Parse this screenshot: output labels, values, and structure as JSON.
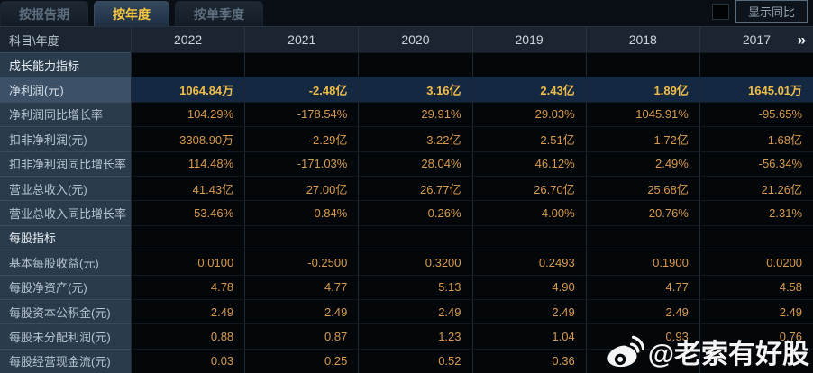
{
  "tabs": [
    {
      "label": "按报告期",
      "active": false
    },
    {
      "label": "按年度",
      "active": true
    },
    {
      "label": "按单季度",
      "active": false
    }
  ],
  "controls": {
    "show_yoy_label": "显示同比",
    "checkbox_checked": false
  },
  "table": {
    "corner_label": "科目\\年度",
    "years": [
      "2022",
      "2021",
      "2020",
      "2019",
      "2018",
      "2017"
    ],
    "more_icon": "»",
    "rows": [
      {
        "type": "section",
        "label": "成长能力指标"
      },
      {
        "type": "data",
        "label": "净利润(元)",
        "highlight": true,
        "values": [
          "1064.84万",
          "-2.48亿",
          "3.16亿",
          "2.43亿",
          "1.89亿",
          "1645.01万"
        ]
      },
      {
        "type": "data",
        "label": "净利润同比增长率",
        "values": [
          "104.29%",
          "-178.54%",
          "29.91%",
          "29.03%",
          "1045.91%",
          "-95.65%"
        ]
      },
      {
        "type": "data",
        "label": "扣非净利润(元)",
        "values": [
          "3308.90万",
          "-2.29亿",
          "3.22亿",
          "2.51亿",
          "1.72亿",
          "1.68亿"
        ]
      },
      {
        "type": "data",
        "label": "扣非净利润同比增长率",
        "values": [
          "114.48%",
          "-171.03%",
          "28.04%",
          "46.12%",
          "2.49%",
          "-56.34%"
        ]
      },
      {
        "type": "data",
        "label": "营业总收入(元)",
        "values": [
          "41.43亿",
          "27.00亿",
          "26.77亿",
          "26.70亿",
          "25.68亿",
          "21.26亿"
        ]
      },
      {
        "type": "data",
        "label": "营业总收入同比增长率",
        "values": [
          "53.46%",
          "0.84%",
          "0.26%",
          "4.00%",
          "20.76%",
          "-2.31%"
        ]
      },
      {
        "type": "section",
        "label": "每股指标"
      },
      {
        "type": "data",
        "label": "基本每股收益(元)",
        "values": [
          "0.0100",
          "-0.2500",
          "0.3200",
          "0.2493",
          "0.1900",
          "0.0200"
        ]
      },
      {
        "type": "data",
        "label": "每股净资产(元)",
        "values": [
          "4.78",
          "4.77",
          "5.13",
          "4.90",
          "4.77",
          "4.58"
        ]
      },
      {
        "type": "data",
        "label": "每股资本公积金(元)",
        "values": [
          "2.49",
          "2.49",
          "2.49",
          "2.49",
          "2.49",
          "2.49"
        ]
      },
      {
        "type": "data",
        "label": "每股未分配利润(元)",
        "values": [
          "0.88",
          "0.87",
          "1.23",
          "1.04",
          "0.93",
          "0.76"
        ]
      },
      {
        "type": "data",
        "label": "每股经营现金流(元)",
        "values": [
          "0.03",
          "0.25",
          "0.52",
          "0.36",
          "",
          ""
        ]
      }
    ]
  },
  "watermark": {
    "text": "@老索有好股"
  },
  "colors": {
    "accent_tab_text": "#f8c63e",
    "value_normal": "#d89a4e",
    "value_highlight": "#f1bd49",
    "label_column_bg": "#2a3b4c",
    "highlight_row_bg": "#142842",
    "header_bg": "#1b2531"
  }
}
